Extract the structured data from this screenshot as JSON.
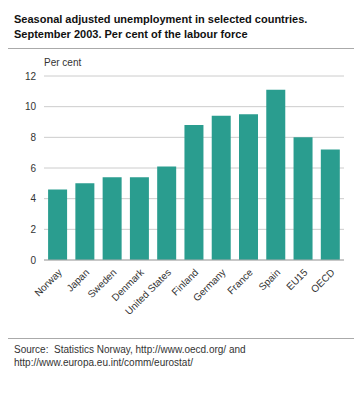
{
  "chart_data": {
    "type": "bar",
    "title": "Seasonal adjusted unemployment in selected countries.",
    "subtitle": "September 2003. Per cent of the labour force",
    "ylabel": "Per cent",
    "annotations": [
      "Source:  Statistics Norway, http://www.oecd.org/ and",
      "http://www.europa.eu.int/comm/eurostat/"
    ],
    "categories": [
      "Norway",
      "Japan",
      "Sweden",
      "Denmark",
      "United States",
      "Finland",
      "Germany",
      "France",
      "Spain",
      "EU15",
      "OECD"
    ],
    "values": [
      4.6,
      5.0,
      5.4,
      5.4,
      6.1,
      8.8,
      9.4,
      9.5,
      11.1,
      8.0,
      7.2
    ],
    "color": "#2a9d8f",
    "ylim": [
      0,
      12
    ],
    "yticks": [
      0,
      2,
      4,
      6,
      8,
      10,
      12
    ],
    "grid": true
  }
}
